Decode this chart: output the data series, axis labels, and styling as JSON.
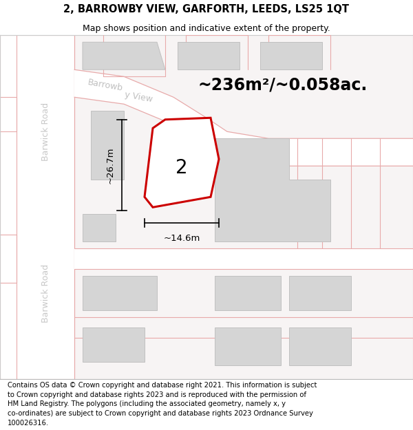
{
  "title": "2, BARROWBY VIEW, GARFORTH, LEEDS, LS25 1QT",
  "subtitle": "Map shows position and indicative extent of the property.",
  "area_label": "~236m²/~0.058ac.",
  "plot_number": "2",
  "dim_height": "~26.7m",
  "dim_width": "~14.6m",
  "road_label_left_top": "Barwick Road",
  "road_label_left_bottom": "Barwick Road",
  "road_label_diagonal": "Barrowby\nView",
  "footer_lines": [
    "Contains OS data © Crown copyright and database right 2021. This information is subject",
    "to Crown copyright and database rights 2023 and is reproduced with the permission of",
    "HM Land Registry. The polygons (including the associated geometry, namely x, y",
    "co-ordinates) are subject to Crown copyright and database rights 2023 Ordnance Survey",
    "100026316."
  ],
  "map_bg": "#f7f4f4",
  "road_line_color": "#e8aaaa",
  "road_fill_color": "#ffffff",
  "building_fill": "#d5d5d5",
  "building_edge": "#c0c0c0",
  "plot_outline_color": "#cc0000",
  "plot_fill": "#ffffff",
  "dim_line_color": "#000000",
  "road_label_color": "#cccccc",
  "title_fontsize": 10.5,
  "subtitle_fontsize": 9,
  "area_fontsize": 17,
  "plot_num_fontsize": 20,
  "dim_fontsize": 9.5,
  "road_label_fontsize": 9,
  "footer_fontsize": 7.2
}
